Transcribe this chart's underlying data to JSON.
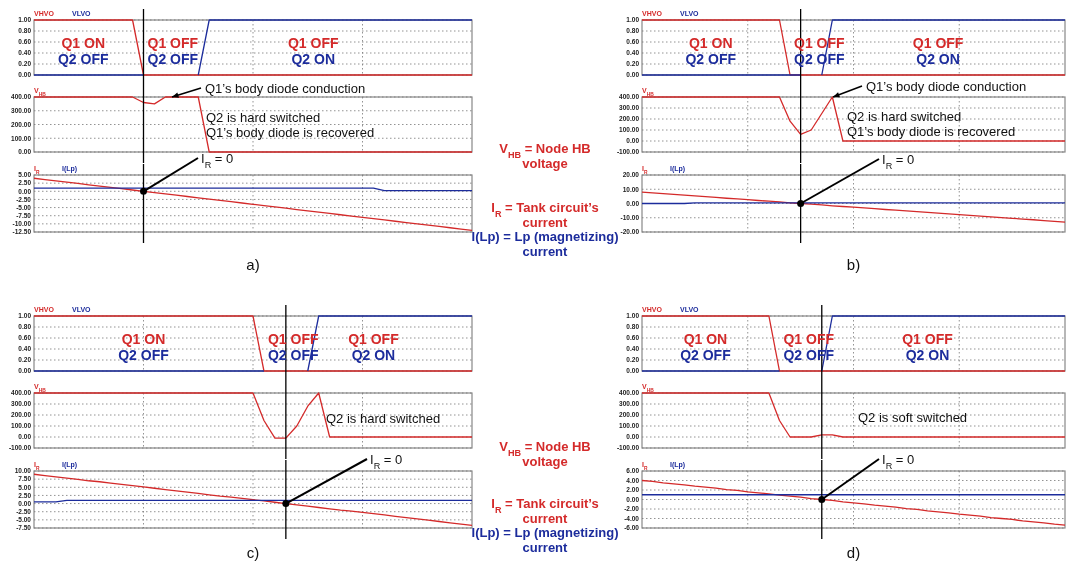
{
  "chart_data": [
    {
      "type": "line",
      "categories": [
        null,
        null,
        null,
        null,
        null,
        null,
        null,
        null,
        null,
        null,
        null,
        null,
        null,
        null,
        null,
        null,
        null,
        null,
        null,
        null,
        null,
        null,
        null,
        null,
        null,
        null,
        null,
        null,
        null,
        null,
        null,
        null,
        null,
        null,
        null,
        null,
        null,
        null,
        null,
        null,
        null
      ],
      "series": [
        {
          "name": "VHVO",
          "color": "#d42a2a",
          "values": [
            1,
            1,
            1,
            1,
            1,
            1,
            1,
            1,
            1,
            1,
            0,
            0,
            0,
            0,
            0,
            0,
            0,
            0,
            0,
            0,
            0,
            0,
            0,
            0,
            0,
            0,
            0,
            0,
            0,
            0,
            0,
            0,
            0,
            0,
            0,
            0,
            0,
            0,
            0,
            0,
            0
          ]
        },
        {
          "name": "VLVO",
          "color": "#1c2c9c",
          "values": [
            0,
            0,
            0,
            0,
            0,
            0,
            0,
            0,
            0,
            0,
            0,
            null,
            null,
            null,
            null,
            0,
            1,
            1,
            1,
            1,
            1,
            1,
            1,
            1,
            1,
            1,
            1,
            1,
            1,
            1,
            1,
            1,
            1,
            1,
            1,
            1,
            1,
            1,
            1,
            1,
            1
          ]
        }
      ],
      "ylim": [
        0,
        1
      ],
      "yticks": [
        {
          "value": 0,
          "label": "0.00"
        },
        {
          "value": 0.2,
          "label": "0.20"
        },
        {
          "value": 0.4,
          "label": "0.40"
        },
        {
          "value": 0.6,
          "label": "0.60"
        },
        {
          "value": 0.8,
          "label": "0.80"
        },
        {
          "value": 1,
          "label": "1.00"
        }
      ],
      "grid": true,
      "legend": "top left",
      "tick_labels": "y",
      "annotations": [
        "Q1 ON",
        "Q2 OFF",
        "Q1 OFF",
        "Q2 OFF",
        "Q1 OFF",
        "Q2 ON"
      ]
    },
    {
      "type": "line",
      "categories": [
        null,
        null,
        null,
        null,
        null,
        null,
        null,
        null,
        null,
        null,
        null,
        null,
        null,
        null,
        null,
        null,
        null,
        null,
        null,
        null,
        null,
        null,
        null,
        null,
        null,
        null,
        null,
        null,
        null,
        null,
        null,
        null,
        null,
        null,
        null,
        null,
        null,
        null,
        null,
        null,
        null
      ],
      "series": [
        {
          "name": "V$_{HB}$",
          "color": "#d42a2a",
          "values": [
            400,
            400,
            400,
            400,
            400,
            400,
            400,
            400,
            400,
            400,
            360,
            350,
            400,
            400,
            400,
            400,
            0,
            0,
            0,
            0,
            0,
            0,
            0,
            0,
            0,
            0,
            0,
            0,
            0,
            0,
            0,
            0,
            0,
            0,
            0,
            0,
            0,
            0,
            0,
            0,
            0
          ]
        }
      ],
      "ylim": [
        0,
        400
      ],
      "yticks": [
        {
          "value": 0,
          "label": "0.00"
        },
        {
          "value": 100,
          "label": "100.00"
        },
        {
          "value": 200,
          "label": "200.00"
        },
        {
          "value": 300,
          "label": "300.00"
        },
        {
          "value": 400,
          "label": "400.00"
        }
      ],
      "grid": true,
      "legend": "top left",
      "tick_labels": "y",
      "annotations": [
        "Q1’s body diode conduction",
        "Q2 is hard switched",
        "Q1’s body diode is recovered",
        "V$_{HB}$ = Node HB voltage"
      ]
    },
    {
      "type": "line",
      "categories": [
        null,
        null,
        null,
        null,
        null,
        null,
        null,
        null,
        null,
        null,
        null,
        null,
        null,
        null,
        null,
        null,
        null,
        null,
        null,
        null,
        null,
        null,
        null,
        null,
        null,
        null,
        null,
        null,
        null,
        null,
        null,
        null,
        null,
        null,
        null,
        null,
        null,
        null,
        null,
        null,
        null
      ],
      "series": [
        {
          "name": "I$_{R}$",
          "color": "#d42a2a",
          "values": [
            4.0,
            3.6,
            3.2,
            2.8,
            2.4,
            2.0,
            1.6,
            1.2,
            0.8,
            0.4,
            0.0,
            -0.4,
            -0.8,
            -1.2,
            -1.6,
            -2.0,
            -2.4,
            -2.8,
            -3.2,
            -3.6,
            -4.0,
            -4.4,
            -4.8,
            -5.2,
            -5.6,
            -6.0,
            -6.4,
            -6.8,
            -7.2,
            -7.6,
            -8.0,
            -8.4,
            -8.8,
            -9.2,
            -9.6,
            -10.0,
            -10.4,
            -10.8,
            -11.2,
            -11.6,
            -12.0
          ]
        },
        {
          "name": "I(Lp)",
          "color": "#1c2c9c",
          "values": [
            1.0,
            1.0,
            1.0,
            1.0,
            1.0,
            1.0,
            1.0,
            1.0,
            1.0,
            1.0,
            1.0,
            1.0,
            1.0,
            1.0,
            1.0,
            1.0,
            1.0,
            1.0,
            1.0,
            1.0,
            1.0,
            1.0,
            1.0,
            1.0,
            1.0,
            1.0,
            1.0,
            1.0,
            1.0,
            1.0,
            1.0,
            1.0,
            0.2,
            0.2,
            0.2,
            0.2,
            0.2,
            0.2,
            0.2,
            0.2,
            0.2
          ]
        }
      ],
      "ylim": [
        -12.5,
        5
      ],
      "yticks": [
        {
          "value": 5,
          "label": "5.00"
        },
        {
          "value": 2.5,
          "label": "2.50"
        },
        {
          "value": 0,
          "label": "0.00"
        },
        {
          "value": -2.5,
          "label": "-2.50"
        },
        {
          "value": -5,
          "label": "-5.00"
        },
        {
          "value": -7.5,
          "label": "-7.50"
        },
        {
          "value": -10,
          "label": "-10.00"
        },
        {
          "value": -12.5,
          "label": "-12.50"
        }
      ],
      "grid": true,
      "legend": "top left",
      "tick_labels": "y",
      "xlabel": "a)",
      "annotations": [
        {
          "text": "I$_{R}$ = 0",
          "y": 0
        },
        "I$_{R}$ = Tank circuit’s current",
        "I(Lp) = Lp (magnetizing) current"
      ]
    },
    {
      "type": "line",
      "categories": [
        null,
        null,
        null,
        null,
        null,
        null,
        null,
        null,
        null,
        null,
        null,
        null,
        null,
        null,
        null,
        null,
        null,
        null,
        null,
        null,
        null,
        null,
        null,
        null,
        null,
        null,
        null,
        null,
        null,
        null,
        null,
        null,
        null,
        null,
        null,
        null,
        null,
        null,
        null,
        null,
        null
      ],
      "series": [
        {
          "name": "VHVO",
          "color": "#d42a2a",
          "values": [
            1,
            1,
            1,
            1,
            1,
            1,
            1,
            1,
            1,
            1,
            1,
            1,
            1,
            1,
            0,
            0,
            0,
            0,
            0,
            0,
            0,
            0,
            0,
            0,
            0,
            0,
            0,
            0,
            0,
            0,
            0,
            0,
            0,
            0,
            0,
            0,
            0,
            0,
            0,
            0,
            0
          ]
        },
        {
          "name": "VLVO",
          "color": "#1c2c9c",
          "values": [
            0,
            0,
            0,
            0,
            0,
            0,
            0,
            0,
            0,
            0,
            0,
            0,
            0,
            0,
            0,
            0,
            null,
            0,
            1,
            1,
            1,
            1,
            1,
            1,
            1,
            1,
            1,
            1,
            1,
            1,
            1,
            1,
            1,
            1,
            1,
            1,
            1,
            1,
            1,
            1,
            1
          ]
        }
      ],
      "ylim": [
        0,
        1
      ],
      "yticks": [
        {
          "value": 0,
          "label": "0.00"
        },
        {
          "value": 0.2,
          "label": "0.20"
        },
        {
          "value": 0.4,
          "label": "0.40"
        },
        {
          "value": 0.6,
          "label": "0.60"
        },
        {
          "value": 0.8,
          "label": "0.80"
        },
        {
          "value": 1,
          "label": "1.00"
        }
      ],
      "grid": true,
      "legend": "top left",
      "tick_labels": "y",
      "annotations": [
        "Q1 ON",
        "Q2 OFF",
        "Q1 OFF",
        "Q2 OFF",
        "Q1 OFF",
        "Q2 ON"
      ]
    },
    {
      "type": "line",
      "categories": [
        null,
        null,
        null,
        null,
        null,
        null,
        null,
        null,
        null,
        null,
        null,
        null,
        null,
        null,
        null,
        null,
        null,
        null,
        null,
        null,
        null,
        null,
        null,
        null,
        null,
        null,
        null,
        null,
        null,
        null,
        null,
        null,
        null,
        null,
        null,
        null,
        null,
        null,
        null,
        null,
        null
      ],
      "series": [
        {
          "name": "V$_{HB}$",
          "color": "#d42a2a",
          "values": [
            400,
            400,
            400,
            400,
            400,
            400,
            400,
            400,
            400,
            400,
            400,
            400,
            400,
            400,
            180,
            60,
            100,
            250,
            400,
            0,
            0,
            0,
            0,
            0,
            0,
            0,
            0,
            0,
            0,
            0,
            0,
            0,
            0,
            0,
            0,
            0,
            0,
            0,
            0,
            0,
            0
          ]
        }
      ],
      "ylim": [
        -100,
        400
      ],
      "yticks": [
        {
          "value": -100,
          "label": "-100.00"
        },
        {
          "value": 0,
          "label": "0.00"
        },
        {
          "value": 100,
          "label": "100.00"
        },
        {
          "value": 200,
          "label": "200.00"
        },
        {
          "value": 300,
          "label": "300.00"
        },
        {
          "value": 400,
          "label": "400.00"
        }
      ],
      "grid": true,
      "legend": "top left",
      "tick_labels": "y",
      "annotations": [
        "Q1’s body diode conduction",
        "Q2 is hard switched",
        "Q1’s body diode is recovered"
      ]
    },
    {
      "type": "line",
      "categories": [
        null,
        null,
        null,
        null,
        null,
        null,
        null,
        null,
        null,
        null,
        null,
        null,
        null,
        null,
        null,
        null,
        null,
        null,
        null,
        null,
        null,
        null,
        null,
        null,
        null,
        null,
        null,
        null,
        null,
        null,
        null,
        null,
        null,
        null,
        null,
        null,
        null,
        null,
        null,
        null,
        null
      ],
      "series": [
        {
          "name": "I$_{R}$",
          "color": "#d42a2a",
          "values": [
            8.0,
            7.5,
            6.9,
            6.4,
            5.9,
            5.3,
            4.8,
            4.3,
            3.7,
            3.2,
            2.7,
            2.1,
            1.6,
            1.1,
            0.5,
            0.0,
            -0.5,
            -1.0,
            -1.6,
            -2.1,
            -2.6,
            -3.1,
            -3.6,
            -4.2,
            -4.7,
            -5.2,
            -5.7,
            -6.2,
            -6.8,
            -7.3,
            -7.8,
            -8.3,
            -8.8,
            -9.4,
            -9.9,
            -10.4,
            -10.9,
            -11.4,
            -12.0,
            -12.5,
            -13.0
          ]
        },
        {
          "name": "I(Lp)",
          "color": "#1c2c9c",
          "values": [
            0.0,
            0.0,
            0.0,
            0.0,
            0.0,
            0.5,
            0.5,
            0.5,
            0.5,
            0.5,
            0.5,
            0.5,
            0.5,
            0.5,
            0.5,
            0.5,
            0.5,
            0.5,
            0.5,
            0.5,
            0.5,
            0.5,
            0.5,
            0.5,
            0.5,
            0.5,
            0.5,
            0.5,
            0.5,
            0.5,
            0.5,
            0.5,
            0.5,
            0.5,
            0.5,
            0.5,
            0.5,
            0.5,
            0.5,
            0.5,
            0.5
          ]
        }
      ],
      "ylim": [
        -20,
        20
      ],
      "yticks": [
        {
          "value": 20,
          "label": "20.00"
        },
        {
          "value": 10,
          "label": "10.00"
        },
        {
          "value": 0,
          "label": "0.00"
        },
        {
          "value": -10,
          "label": "-10.00"
        },
        {
          "value": -20,
          "label": "-20.00"
        }
      ],
      "grid": true,
      "legend": "top left",
      "tick_labels": "y",
      "xlabel": "b)",
      "annotations": [
        {
          "text": "I$_{R}$ = 0",
          "y": 0
        }
      ]
    },
    {
      "type": "line",
      "categories": [
        null,
        null,
        null,
        null,
        null,
        null,
        null,
        null,
        null,
        null,
        null,
        null,
        null,
        null,
        null,
        null,
        null,
        null,
        null,
        null,
        null,
        null,
        null,
        null,
        null,
        null,
        null,
        null,
        null,
        null,
        null,
        null,
        null,
        null,
        null,
        null,
        null,
        null,
        null,
        null,
        null
      ],
      "series": [
        {
          "name": "VHVO",
          "color": "#d42a2a",
          "values": [
            1,
            1,
            1,
            1,
            1,
            1,
            1,
            1,
            1,
            1,
            1,
            1,
            1,
            1,
            1,
            1,
            1,
            1,
            1,
            1,
            1,
            0,
            0,
            0,
            0,
            0,
            0,
            0,
            0,
            0,
            0,
            0,
            0,
            0,
            0,
            0,
            0,
            0,
            0,
            0,
            0
          ]
        },
        {
          "name": "VLVO",
          "color": "#1c2c9c",
          "values": [
            0,
            0,
            0,
            0,
            0,
            0,
            0,
            0,
            0,
            0,
            0,
            0,
            0,
            0,
            0,
            0,
            0,
            0,
            0,
            0,
            0,
            0,
            null,
            null,
            null,
            0,
            1,
            1,
            1,
            1,
            1,
            1,
            1,
            1,
            1,
            1,
            1,
            1,
            1,
            1,
            1
          ]
        }
      ],
      "ylim": [
        0,
        1
      ],
      "yticks": [
        {
          "value": 0,
          "label": "0.00"
        },
        {
          "value": 0.2,
          "label": "0.20"
        },
        {
          "value": 0.4,
          "label": "0.40"
        },
        {
          "value": 0.6,
          "label": "0.60"
        },
        {
          "value": 0.8,
          "label": "0.80"
        },
        {
          "value": 1,
          "label": "1.00"
        }
      ],
      "grid": true,
      "legend": "top left",
      "tick_labels": "y",
      "annotations": [
        "Q1 ON",
        "Q2 OFF",
        "Q1 OFF",
        "Q2 OFF",
        "Q1 OFF",
        "Q2 ON"
      ]
    },
    {
      "type": "line",
      "categories": [
        null,
        null,
        null,
        null,
        null,
        null,
        null,
        null,
        null,
        null,
        null,
        null,
        null,
        null,
        null,
        null,
        null,
        null,
        null,
        null,
        null,
        null,
        null,
        null,
        null,
        null,
        null,
        null,
        null,
        null,
        null,
        null,
        null,
        null,
        null,
        null,
        null,
        null,
        null,
        null,
        null
      ],
      "series": [
        {
          "name": "V$_{HB}$",
          "color": "#d42a2a",
          "values": [
            400,
            400,
            400,
            400,
            400,
            400,
            400,
            400,
            400,
            400,
            400,
            400,
            400,
            400,
            400,
            400,
            400,
            400,
            400,
            400,
            400,
            150,
            -10,
            -10,
            100,
            280,
            400,
            0,
            0,
            0,
            0,
            0,
            0,
            0,
            0,
            0,
            0,
            0,
            0,
            0,
            0
          ]
        }
      ],
      "ylim": [
        -100,
        400
      ],
      "yticks": [
        {
          "value": -100,
          "label": "-100.00"
        },
        {
          "value": 0,
          "label": "0.00"
        },
        {
          "value": 100,
          "label": "100.00"
        },
        {
          "value": 200,
          "label": "200.00"
        },
        {
          "value": 300,
          "label": "300.00"
        },
        {
          "value": 400,
          "label": "400.00"
        }
      ],
      "grid": true,
      "legend": "top left",
      "tick_labels": "y",
      "annotations": [
        "Q2 is hard switched",
        "V$_{HB}$ = Node HB voltage"
      ]
    },
    {
      "type": "line",
      "categories": [
        null,
        null,
        null,
        null,
        null,
        null,
        null,
        null,
        null,
        null,
        null,
        null,
        null,
        null,
        null,
        null,
        null,
        null,
        null,
        null,
        null,
        null,
        null,
        null,
        null,
        null,
        null,
        null,
        null,
        null,
        null,
        null,
        null,
        null,
        null,
        null,
        null,
        null,
        null,
        null,
        null
      ],
      "series": [
        {
          "name": "I$_{R}$",
          "color": "#d42a2a",
          "values": [
            9.0,
            8.6,
            8.2,
            7.8,
            7.4,
            7.0,
            6.7,
            6.3,
            5.9,
            5.5,
            5.1,
            4.7,
            4.3,
            3.9,
            3.5,
            3.1,
            2.7,
            2.3,
            2.0,
            1.6,
            1.2,
            0.8,
            0.4,
            0.0,
            -0.4,
            -0.8,
            -1.2,
            -1.6,
            -2.0,
            -2.3,
            -2.7,
            -3.1,
            -3.5,
            -3.9,
            -4.3,
            -4.7,
            -5.1,
            -5.5,
            -5.9,
            -6.3,
            -6.7
          ]
        },
        {
          "name": "I(Lp)",
          "color": "#1c2c9c",
          "values": [
            0.5,
            0.5,
            0.5,
            1.0,
            1.0,
            1.0,
            1.0,
            1.0,
            1.0,
            1.0,
            1.0,
            1.0,
            1.0,
            1.0,
            1.0,
            1.0,
            1.0,
            1.0,
            1.0,
            1.0,
            1.0,
            1.0,
            1.0,
            1.0,
            1.0,
            1.0,
            1.0,
            1.0,
            1.0,
            1.0,
            1.0,
            1.0,
            1.0,
            1.0,
            1.0,
            1.0,
            1.0,
            1.0,
            1.0,
            1.0,
            1.0
          ]
        }
      ],
      "ylim": [
        -7.5,
        10
      ],
      "yticks": [
        {
          "value": 10,
          "label": "10.00"
        },
        {
          "value": 7.5,
          "label": "7.50"
        },
        {
          "value": 5,
          "label": "5.00"
        },
        {
          "value": 2.5,
          "label": "2.50"
        },
        {
          "value": 0,
          "label": "0.00"
        },
        {
          "value": -2.5,
          "label": "-2.50"
        },
        {
          "value": -5,
          "label": "-5.00"
        },
        {
          "value": -7.5,
          "label": "-7.50"
        }
      ],
      "grid": true,
      "legend": "top left",
      "tick_labels": "y",
      "xlabel": "c)",
      "annotations": [
        {
          "text": "I$_{R}$ = 0",
          "y": 0
        },
        "I$_{R}$ = Tank circuit’s current",
        "I(Lp) = Lp (magnetizing) current"
      ]
    },
    {
      "type": "line",
      "categories": [
        null,
        null,
        null,
        null,
        null,
        null,
        null,
        null,
        null,
        null,
        null,
        null,
        null,
        null,
        null,
        null,
        null,
        null,
        null,
        null,
        null,
        null,
        null,
        null,
        null,
        null,
        null,
        null,
        null,
        null,
        null,
        null,
        null,
        null,
        null,
        null,
        null,
        null,
        null,
        null,
        null
      ],
      "series": [
        {
          "name": "VHVO",
          "color": "#d42a2a",
          "values": [
            1,
            1,
            1,
            1,
            1,
            1,
            1,
            1,
            1,
            1,
            1,
            1,
            1,
            0,
            0,
            0,
            0,
            0,
            0,
            0,
            0,
            0,
            0,
            0,
            0,
            0,
            0,
            0,
            0,
            0,
            0,
            0,
            0,
            0,
            0,
            0,
            0,
            0,
            0,
            0,
            0
          ]
        },
        {
          "name": "VLVO",
          "color": "#1c2c9c",
          "values": [
            0,
            0,
            0,
            0,
            0,
            0,
            0,
            0,
            0,
            0,
            0,
            0,
            0,
            0,
            null,
            null,
            null,
            0,
            1,
            1,
            1,
            1,
            1,
            1,
            1,
            1,
            1,
            1,
            1,
            1,
            1,
            1,
            1,
            1,
            1,
            1,
            1,
            1,
            1,
            1,
            1
          ]
        }
      ],
      "ylim": [
        0,
        1
      ],
      "yticks": [
        {
          "value": 0,
          "label": "0.00"
        },
        {
          "value": 0.2,
          "label": "0.20"
        },
        {
          "value": 0.4,
          "label": "0.40"
        },
        {
          "value": 0.6,
          "label": "0.60"
        },
        {
          "value": 0.8,
          "label": "0.80"
        },
        {
          "value": 1,
          "label": "1.00"
        }
      ],
      "grid": true,
      "legend": "top left",
      "tick_labels": "y",
      "annotations": [
        "Q1 ON",
        "Q2 OFF",
        "Q1 OFF",
        "Q2 OFF",
        "Q1 OFF",
        "Q2 ON"
      ]
    },
    {
      "type": "line",
      "categories": [
        null,
        null,
        null,
        null,
        null,
        null,
        null,
        null,
        null,
        null,
        null,
        null,
        null,
        null,
        null,
        null,
        null,
        null,
        null,
        null,
        null,
        null,
        null,
        null,
        null,
        null,
        null,
        null,
        null,
        null,
        null,
        null,
        null,
        null,
        null,
        null,
        null,
        null,
        null,
        null,
        null
      ],
      "series": [
        {
          "name": "V$_{HB}$",
          "color": "#d42a2a",
          "values": [
            400,
            400,
            400,
            400,
            400,
            400,
            400,
            400,
            400,
            400,
            400,
            400,
            400,
            150,
            0,
            0,
            0,
            20,
            20,
            0,
            0,
            0,
            0,
            0,
            0,
            0,
            0,
            0,
            0,
            0,
            0,
            0,
            0,
            0,
            0,
            0,
            0,
            0,
            0,
            0,
            0
          ]
        }
      ],
      "ylim": [
        -100,
        400
      ],
      "yticks": [
        {
          "value": -100,
          "label": "-100.00"
        },
        {
          "value": 0,
          "label": "0.00"
        },
        {
          "value": 100,
          "label": "100.00"
        },
        {
          "value": 200,
          "label": "200.00"
        },
        {
          "value": 300,
          "label": "300.00"
        },
        {
          "value": 400,
          "label": "400.00"
        }
      ],
      "grid": true,
      "legend": "top left",
      "tick_labels": "y",
      "annotations": [
        "Q2 is soft switched"
      ]
    },
    {
      "type": "line",
      "categories": [
        null,
        null,
        null,
        null,
        null,
        null,
        null,
        null,
        null,
        null,
        null,
        null,
        null,
        null,
        null,
        null,
        null,
        null,
        null,
        null,
        null,
        null,
        null,
        null,
        null,
        null,
        null,
        null,
        null,
        null,
        null,
        null,
        null,
        null,
        null,
        null,
        null,
        null,
        null,
        null,
        null
      ],
      "series": [
        {
          "name": "I$_{R}$",
          "color": "#d42a2a",
          "values": [
            4.0,
            3.8,
            3.5,
            3.3,
            3.1,
            2.8,
            2.6,
            2.4,
            2.1,
            1.9,
            1.6,
            1.4,
            1.2,
            0.9,
            0.7,
            0.5,
            0.2,
            0.0,
            -0.2,
            -0.5,
            -0.7,
            -0.9,
            -1.2,
            -1.4,
            -1.6,
            -1.9,
            -2.1,
            -2.4,
            -2.6,
            -2.8,
            -3.1,
            -3.3,
            -3.5,
            -3.8,
            -4.0,
            -4.2,
            -4.5,
            -4.7,
            -4.9,
            -5.2,
            -5.4
          ]
        },
        {
          "name": "I(Lp)",
          "color": "#1c2c9c",
          "values": [
            1.0,
            1.0,
            1.0,
            1.0,
            1.0,
            1.0,
            1.0,
            1.0,
            1.0,
            1.0,
            1.0,
            1.0,
            1.0,
            1.0,
            1.0,
            1.0,
            1.0,
            1.0,
            1.0,
            1.0,
            1.0,
            1.0,
            1.0,
            1.0,
            1.0,
            1.0,
            1.0,
            1.0,
            1.0,
            1.0,
            1.0,
            1.0,
            1.0,
            1.0,
            1.0,
            1.0,
            1.0,
            1.0,
            1.0,
            1.0,
            1.0
          ]
        }
      ],
      "ylim": [
        -6,
        6
      ],
      "yticks": [
        {
          "value": 6,
          "label": "6.00"
        },
        {
          "value": 4,
          "label": "4.00"
        },
        {
          "value": 2,
          "label": "2.00"
        },
        {
          "value": 0,
          "label": "0.00"
        },
        {
          "value": -2,
          "label": "-2.00"
        },
        {
          "value": -4,
          "label": "-4.00"
        },
        {
          "value": -6,
          "label": "-6.00"
        }
      ],
      "grid": true,
      "legend": "top left",
      "tick_labels": "y",
      "xlabel": "d)",
      "annotations": [
        {
          "text": "I$_{R}$ = 0",
          "y": 0
        }
      ]
    }
  ]
}
